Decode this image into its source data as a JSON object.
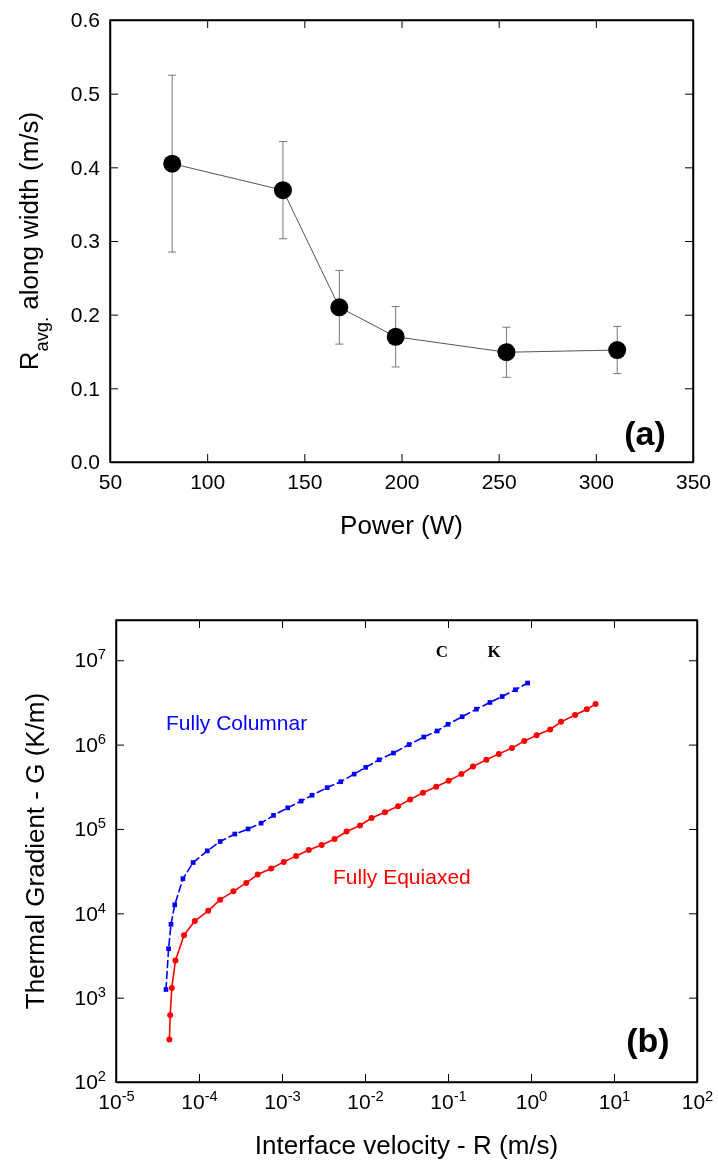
{
  "chart_data": [
    {
      "type": "line",
      "xlabel": "Power (W)",
      "ylabel": "R$_{avg.}$ along width (m/s)",
      "annotations": [
        "(a)"
      ],
      "color": "#000000",
      "marker": "circle",
      "x": [
        82,
        139,
        168,
        197,
        254,
        311
      ],
      "values": [
        0.405,
        0.369,
        0.21,
        0.17,
        0.149,
        0.152
      ],
      "errors": [
        0.12,
        0.066,
        0.05,
        0.041,
        0.034,
        0.032
      ],
      "xlim": [
        50,
        350
      ],
      "xticks": [
        50,
        100,
        150,
        200,
        250,
        300,
        350
      ],
      "ylim": [
        0,
        0.6
      ],
      "yticks": [
        {
          "value": 0,
          "label": "0.0"
        },
        {
          "value": 0.1,
          "label": "0.1"
        },
        {
          "value": 0.2,
          "label": "0.2"
        },
        {
          "value": 0.3,
          "label": "0.3"
        },
        {
          "value": 0.4,
          "label": "0.4"
        },
        {
          "value": 0.5,
          "label": "0.5"
        },
        {
          "value": 0.6,
          "label": "0.6"
        }
      ]
    },
    {
      "type": "line",
      "log": "xy",
      "xlabel": "Interface velocity - R (m/s)",
      "ylabel": "Thermal Gradient - G (K/m)",
      "annotations": [
        "C",
        "K",
        "(b)"
      ],
      "series": [
        {
          "name": "Fully Columnar",
          "color": "#0000ff",
          "marker": "square",
          "line_style": "dashed",
          "x": [
            4e-05,
            4.3e-05,
            4.6e-05,
            5.1e-05,
            6.4e-05,
            8.5e-05,
            0.000126,
            0.00018,
            0.00027,
            0.00039,
            0.00056,
            0.00079,
            0.00117,
            0.0017,
            0.0023,
            0.0035,
            0.0051,
            0.0074,
            0.0102,
            0.0148,
            0.022,
            0.034,
            0.051,
            0.074,
            0.1,
            0.148,
            0.22,
            0.32,
            0.45,
            0.65,
            0.91
          ],
          "values": [
            1250,
            3800,
            7400,
            12600,
            25700,
            40000,
            55000,
            71000,
            87000,
            100000,
            117000,
            145000,
            178000,
            214000,
            251000,
            309000,
            363000,
            447000,
            537000,
            661000,
            794000,
            1000000,
            1230000,
            1450000,
            1740000,
            2140000,
            2630000,
            3160000,
            3720000,
            4470000,
            5370000
          ]
        },
        {
          "name": "Fully Equiaxed",
          "color": "#ff0000",
          "marker": "circle",
          "line_style": "solid",
          "x": [
            4.4e-05,
            4.5e-05,
            4.7e-05,
            5.2e-05,
            6.6e-05,
            8.9e-05,
            0.000129,
            0.00018,
            0.00026,
            0.00037,
            0.00051,
            0.00074,
            0.00105,
            0.00148,
            0.0021,
            0.003,
            0.0043,
            0.006,
            0.0087,
            0.012,
            0.0174,
            0.025,
            0.035,
            0.05,
            0.072,
            0.102,
            0.145,
            0.2,
            0.29,
            0.41,
            0.59,
            0.83,
            1.17,
            1.7,
            2.3,
            3.4,
            4.7,
            6.0
          ],
          "values": [
            320,
            620,
            1300,
            2750,
            5500,
            8100,
            10700,
            14500,
            18200,
            22900,
            28800,
            33900,
            40700,
            47900,
            56200,
            64600,
            75900,
            93300,
            110000,
            135000,
            158000,
            186000,
            224000,
            269000,
            316000,
            372000,
            447000,
            550000,
            661000,
            776000,
            912000,
            1100000,
            1290000,
            1510000,
            1860000,
            2240000,
            2630000,
            3020000
          ]
        }
      ],
      "xlim": [
        1e-05,
        100
      ],
      "xticks": [
        {
          "value": 1e-05,
          "label": "10$^{-5}$"
        },
        {
          "value": 0.0001,
          "label": "10$^{-4}$"
        },
        {
          "value": 0.001,
          "label": "10$^{-3}$"
        },
        {
          "value": 0.01,
          "label": "10$^{-2}$"
        },
        {
          "value": 0.1,
          "label": "10$^{-1}$"
        },
        {
          "value": 1,
          "label": "10$^{0}$"
        },
        {
          "value": 10,
          "label": "10$^{1}$"
        },
        {
          "value": 100,
          "label": "10$^{2}$"
        }
      ],
      "ylim": [
        100,
        30000000
      ],
      "yticks": [
        {
          "value": 100,
          "label": "10$^{2}$"
        },
        {
          "value": 1000,
          "label": "10$^{3}$"
        },
        {
          "value": 10000,
          "label": "10$^{4}$"
        },
        {
          "value": 100000,
          "label": "10$^{5}$"
        },
        {
          "value": 1000000,
          "label": "10$^{6}$"
        },
        {
          "value": 10000000,
          "label": "10$^{7}$"
        }
      ]
    }
  ]
}
